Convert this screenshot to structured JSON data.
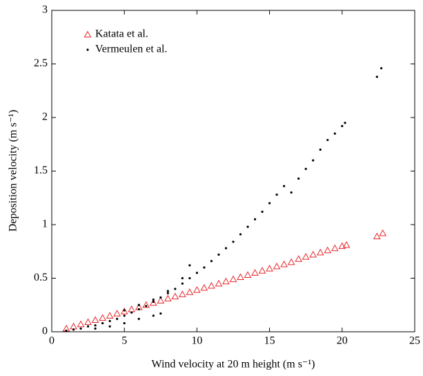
{
  "chart_data": {
    "type": "scatter",
    "x_label": "Wind velocity at 20 m height (m s⁻¹)",
    "y_label": "Deposition velocity (m s⁻¹)",
    "xlim": [
      0,
      25
    ],
    "xticks": [
      0,
      5,
      10,
      15,
      20,
      25
    ],
    "ylim": [
      0,
      3
    ],
    "yticks": [
      0,
      0.5,
      1,
      1.5,
      2,
      2.5,
      3
    ],
    "legend": "upper-left",
    "series": [
      {
        "name": "Katata et al.",
        "color": "#e8262b",
        "marker": "triangle",
        "x": [
          1,
          1.5,
          2,
          2.5,
          3,
          3.5,
          4,
          4.5,
          5,
          5.5,
          6,
          6.5,
          7,
          7.5,
          8,
          8.5,
          9,
          9.5,
          10,
          10.5,
          11,
          11.5,
          12,
          12.5,
          13,
          13.5,
          14,
          14.5,
          15,
          15.5,
          16,
          16.5,
          17,
          17.5,
          18,
          18.5,
          19,
          19.5,
          20,
          20.3,
          22.4,
          22.8
        ],
        "values": [
          0.03,
          0.05,
          0.07,
          0.09,
          0.11,
          0.13,
          0.15,
          0.17,
          0.19,
          0.21,
          0.23,
          0.25,
          0.27,
          0.29,
          0.31,
          0.33,
          0.35,
          0.37,
          0.39,
          0.41,
          0.43,
          0.45,
          0.47,
          0.49,
          0.51,
          0.53,
          0.55,
          0.57,
          0.59,
          0.61,
          0.63,
          0.65,
          0.68,
          0.7,
          0.72,
          0.74,
          0.76,
          0.78,
          0.8,
          0.81,
          0.89,
          0.92
        ]
      },
      {
        "name": "Vermeulen et al.",
        "color": "#000000",
        "marker": "dot",
        "x": [
          1,
          1.5,
          2,
          2.5,
          3,
          3.5,
          4,
          4.5,
          5,
          5.5,
          6,
          6.5,
          7,
          7.5,
          8,
          8.5,
          9,
          9.5,
          10,
          10.5,
          11,
          11.5,
          12,
          12.5,
          13,
          13.5,
          14,
          14.5,
          15,
          15.5,
          16,
          16.5,
          17,
          17.5,
          18,
          18.5,
          19,
          19.5,
          20,
          20.2,
          22.4,
          22.7,
          3,
          4,
          5,
          6,
          7,
          7.5,
          5,
          6,
          7,
          8,
          9,
          9.5
        ],
        "values": [
          0.01,
          0.02,
          0.03,
          0.05,
          0.06,
          0.08,
          0.1,
          0.12,
          0.15,
          0.18,
          0.21,
          0.24,
          0.28,
          0.32,
          0.36,
          0.4,
          0.45,
          0.5,
          0.55,
          0.6,
          0.66,
          0.72,
          0.78,
          0.84,
          0.91,
          0.98,
          1.05,
          1.12,
          1.2,
          1.28,
          1.36,
          1.3,
          1.43,
          1.52,
          1.6,
          1.7,
          1.79,
          1.85,
          1.92,
          1.95,
          2.38,
          2.46,
          0.03,
          0.05,
          0.08,
          0.12,
          0.15,
          0.17,
          0.2,
          0.25,
          0.3,
          0.38,
          0.5,
          0.62
        ]
      }
    ]
  }
}
